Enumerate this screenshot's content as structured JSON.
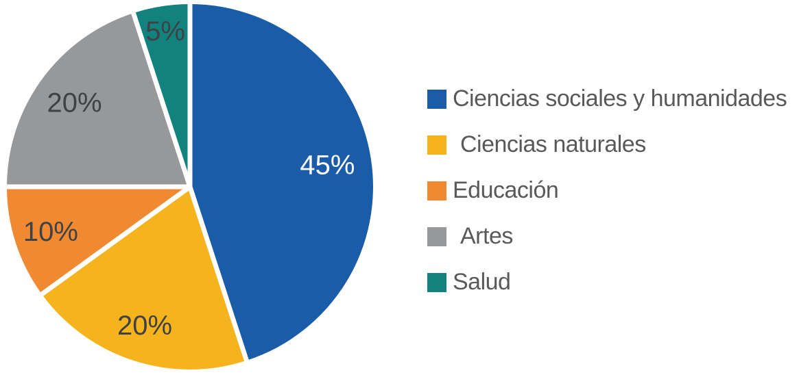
{
  "chart_data": {
    "type": "pie",
    "title": "",
    "categories": [
      "Ciencias sociales y humanidades",
      "Ciencias naturales",
      "Educación",
      "Artes",
      "Salud"
    ],
    "values": [
      45,
      20,
      10,
      20,
      5
    ],
    "value_labels": [
      "45%",
      "20%",
      "10%",
      "20%",
      "5%"
    ],
    "colors": [
      "#1A5CA7",
      "#F5B41D",
      "#EF8A33",
      "#96989A",
      "#12827E"
    ],
    "value_label_colors": [
      "#FFFFFF",
      "#404145",
      "#404145",
      "#404145",
      "#404145"
    ],
    "start_angle_deg": 0,
    "direction": "clockwise",
    "separator_color": "#FFFFFF",
    "legend_position": "right",
    "legend_text_color": "#58595B",
    "background_color": "#FFFFFF"
  }
}
